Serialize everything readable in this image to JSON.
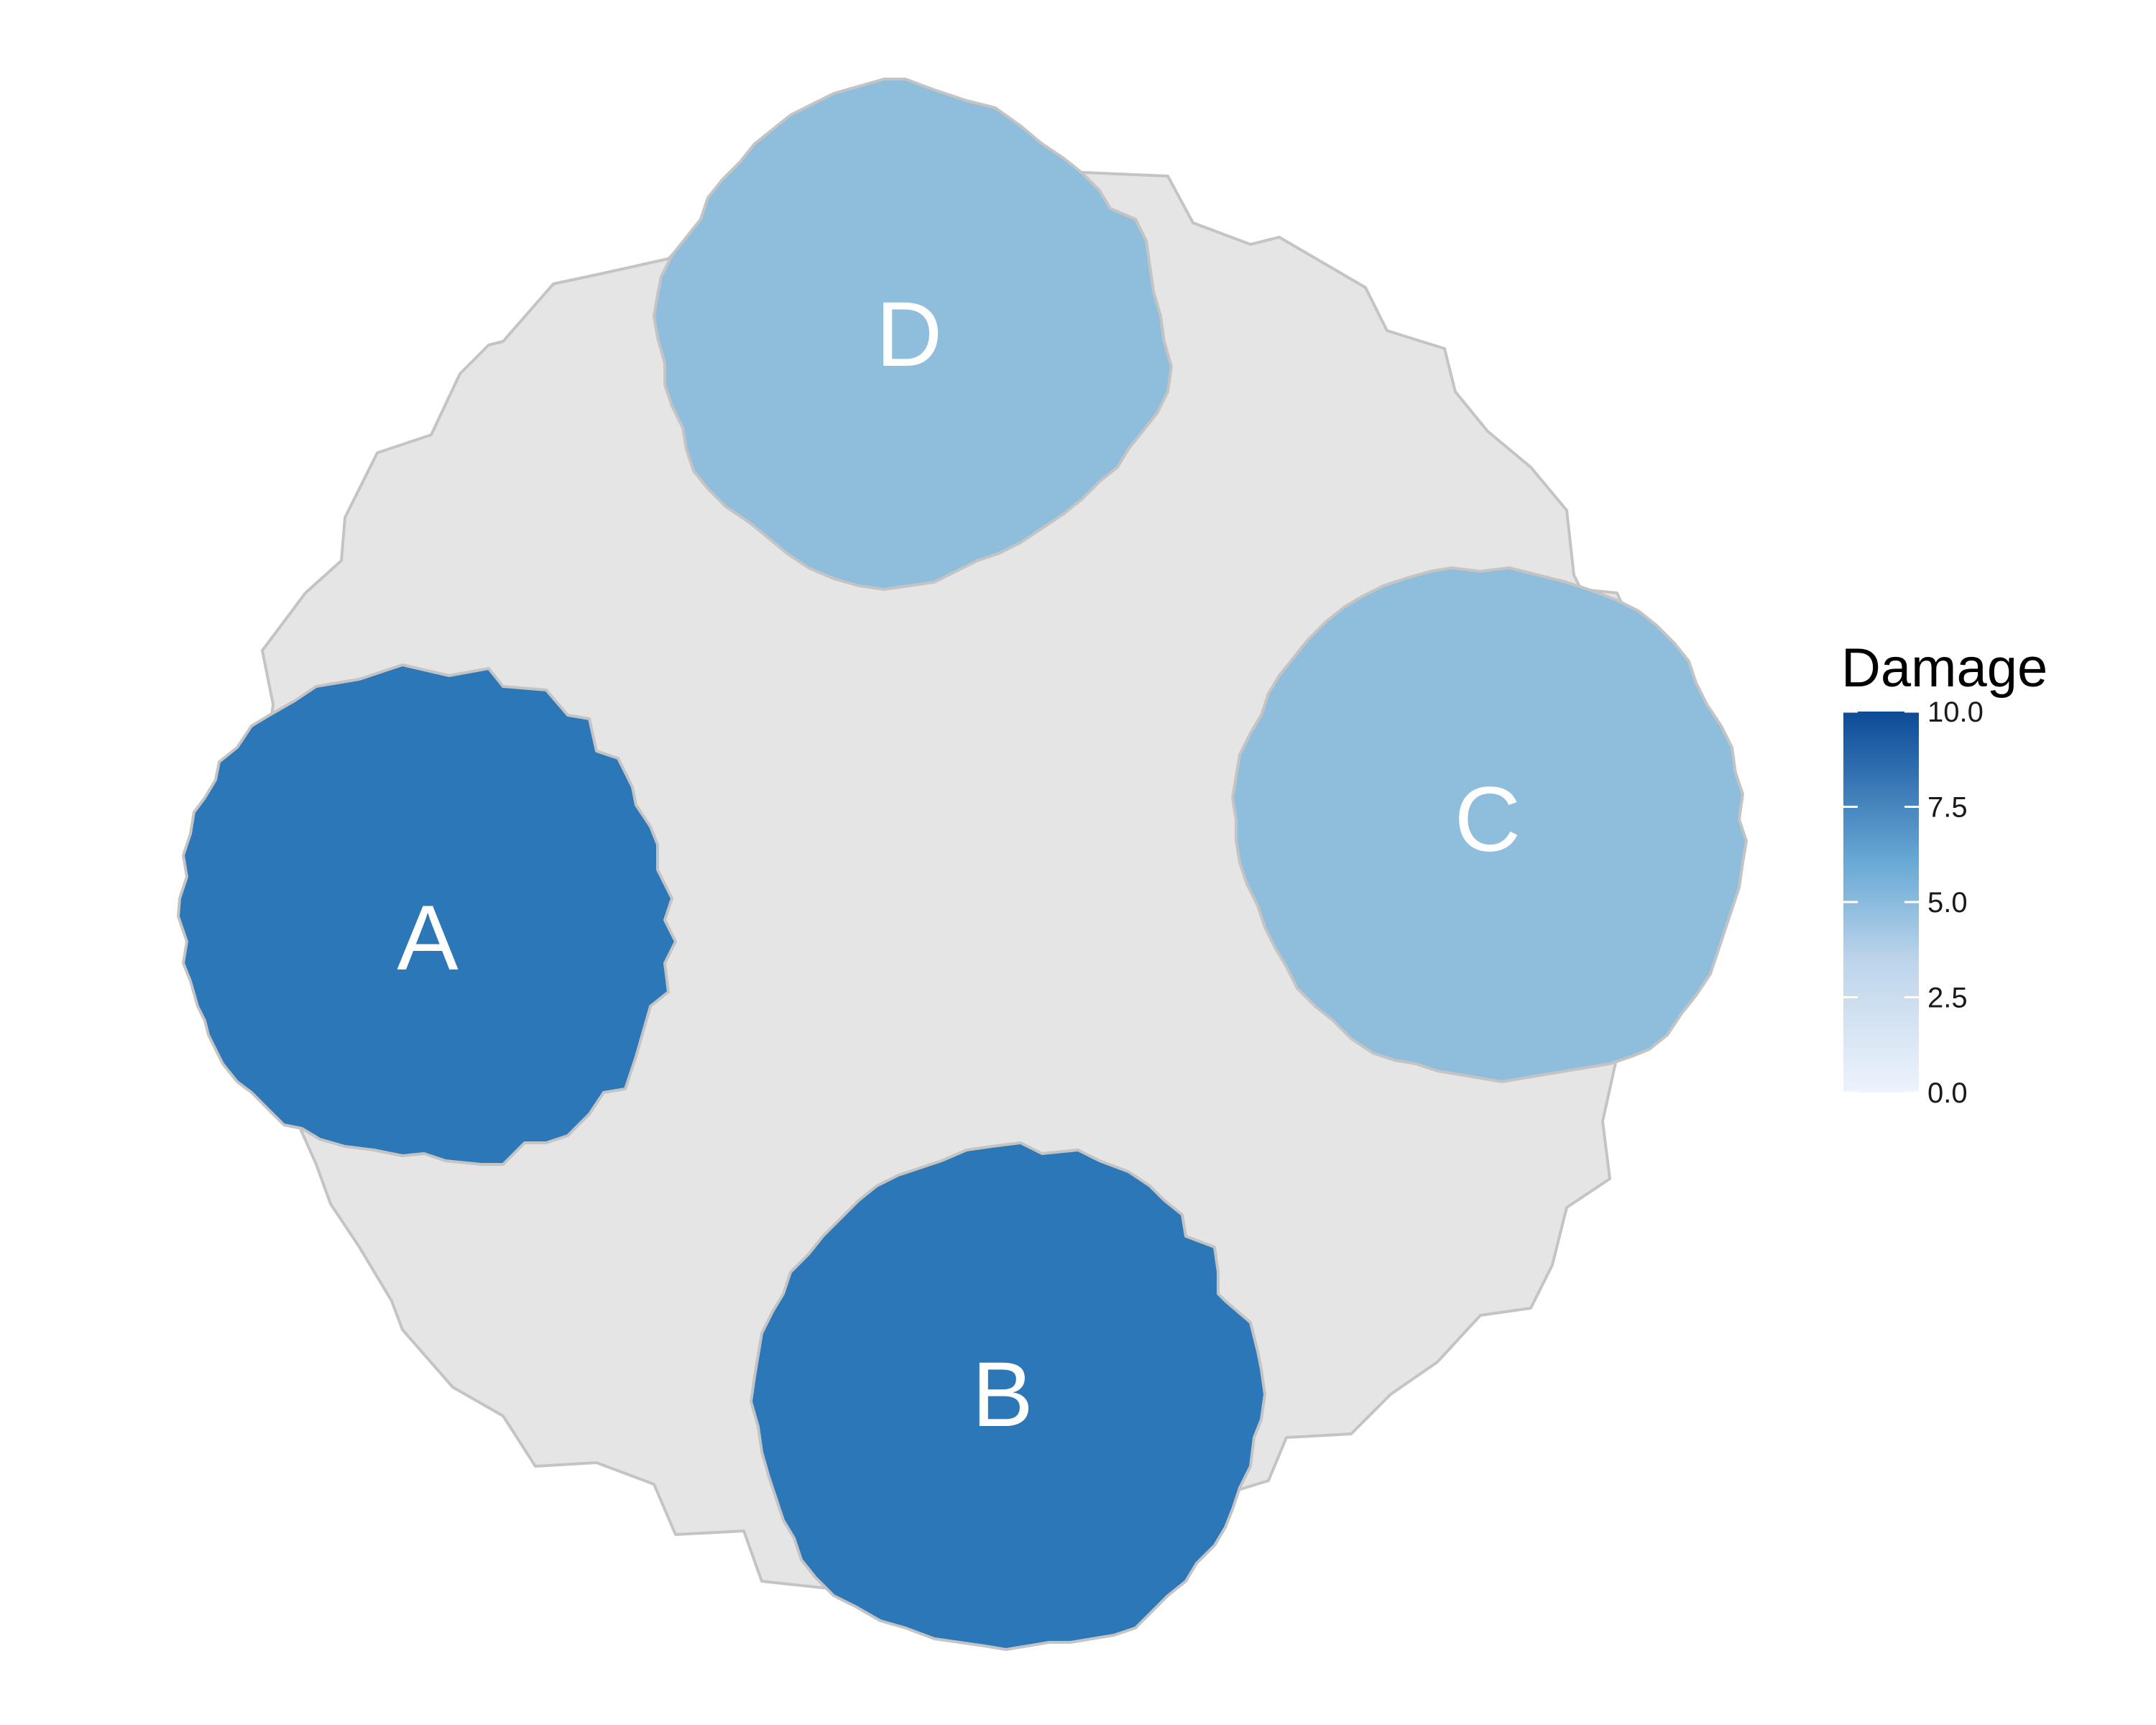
{
  "diagram": {
    "background_shape_color": "#e5e5e5",
    "outline_color": "#c4c4c4",
    "regions": [
      {
        "label": "A",
        "damage": 8,
        "color": "#2c77b8"
      },
      {
        "label": "B",
        "damage": 8,
        "color": "#2c77b8"
      },
      {
        "label": "C",
        "damage": 4,
        "color": "#8fbedc"
      },
      {
        "label": "D",
        "damage": 4,
        "color": "#8fbedc"
      }
    ]
  },
  "legend": {
    "title": "Damage",
    "min": 0,
    "max": 10,
    "ticks": [
      "0.0",
      "2.5",
      "5.0",
      "7.5",
      "10.0"
    ],
    "color_low": "#eef3fc",
    "color_high": "#0c4a97"
  }
}
